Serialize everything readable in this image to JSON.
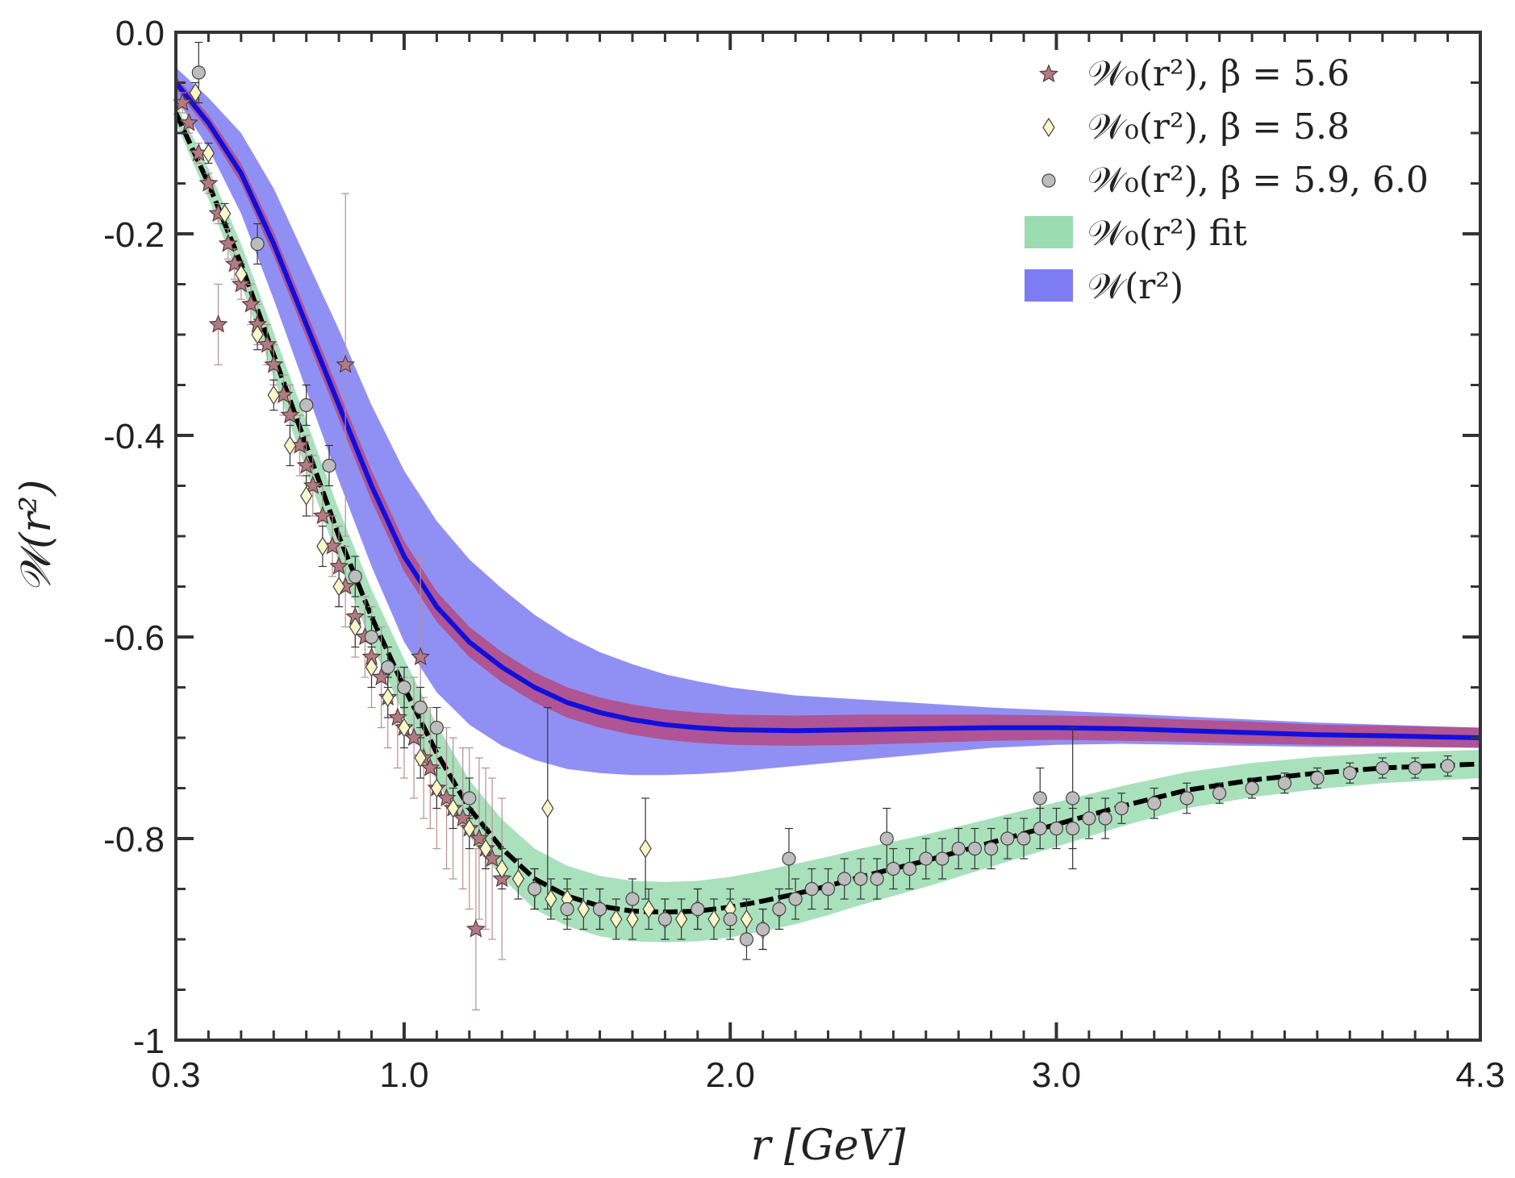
{
  "chart_data": {
    "type": "scatter",
    "title": "",
    "xlabel": "r [GeV]",
    "ylabel": "𝒲(r²)",
    "xlim": [
      0.3,
      4.3
    ],
    "ylim": [
      -1.0,
      0.0
    ],
    "x_ticks": [
      "0.3",
      "1.0",
      "2.0",
      "3.0",
      "4.3"
    ],
    "x_tick_values": [
      0.3,
      1.0,
      2.0,
      3.0,
      4.3
    ],
    "y_ticks": [
      "0.0",
      "-0.2",
      "-0.4",
      "-0.6",
      "-0.8",
      "-1"
    ],
    "y_tick_values": [
      0.0,
      -0.2,
      -0.4,
      -0.6,
      -0.8,
      -1.0
    ],
    "grid": false,
    "legend_position": "top-right",
    "colors": {
      "star": "#b07b82",
      "diamond": "#fbf7c8",
      "circle": "#bdbdbd",
      "green_band": "#9adcb0",
      "blue_band": "#7d7cf2",
      "red_band": "#b24e8a",
      "blue_line": "#1010dd",
      "black_line": "#000000"
    },
    "legend": [
      {
        "label": "𝒲₀(r²), β = 5.6",
        "marker": "star"
      },
      {
        "label": "𝒲₀(r²), β = 5.8",
        "marker": "diamond"
      },
      {
        "label": "𝒲₀(r²), β = 5.9, 6.0",
        "marker": "circle"
      },
      {
        "label": "𝒲₀(r²) fit",
        "marker": "green-band"
      },
      {
        "label": "𝒲(r²)",
        "marker": "blue-band"
      }
    ],
    "fit_curve": {
      "name": "𝒲₀(r²) fit",
      "x": [
        0.3,
        0.4,
        0.5,
        0.6,
        0.7,
        0.8,
        0.9,
        1.0,
        1.1,
        1.2,
        1.3,
        1.4,
        1.5,
        1.6,
        1.7,
        1.8,
        1.9,
        2.0,
        2.1,
        2.2,
        2.3,
        2.4,
        2.5,
        2.6,
        2.7,
        2.8,
        2.9,
        3.0,
        3.2,
        3.4,
        3.6,
        3.8,
        4.0,
        4.3
      ],
      "y": [
        -0.08,
        -0.15,
        -0.23,
        -0.32,
        -0.41,
        -0.5,
        -0.58,
        -0.65,
        -0.715,
        -0.77,
        -0.81,
        -0.84,
        -0.857,
        -0.867,
        -0.872,
        -0.873,
        -0.872,
        -0.868,
        -0.862,
        -0.855,
        -0.847,
        -0.838,
        -0.83,
        -0.822,
        -0.813,
        -0.804,
        -0.795,
        -0.786,
        -0.768,
        -0.752,
        -0.742,
        -0.735,
        -0.73,
        -0.726
      ],
      "band_half_width": [
        0.01,
        0.015,
        0.02,
        0.022,
        0.025,
        0.026,
        0.027,
        0.028,
        0.028,
        0.028,
        0.029,
        0.03,
        0.03,
        0.03,
        0.03,
        0.03,
        0.03,
        0.03,
        0.03,
        0.03,
        0.029,
        0.028,
        0.027,
        0.026,
        0.025,
        0.024,
        0.023,
        0.022,
        0.02,
        0.018,
        0.017,
        0.016,
        0.015,
        0.014
      ]
    },
    "w_curve": {
      "name": "𝒲(r²)",
      "x": [
        0.3,
        0.4,
        0.5,
        0.6,
        0.7,
        0.8,
        0.9,
        1.0,
        1.1,
        1.2,
        1.3,
        1.4,
        1.5,
        1.6,
        1.7,
        1.8,
        1.9,
        2.0,
        2.2,
        2.4,
        2.6,
        2.8,
        3.0,
        3.2,
        3.4,
        3.6,
        3.8,
        4.0,
        4.3
      ],
      "y": [
        -0.05,
        -0.09,
        -0.14,
        -0.21,
        -0.29,
        -0.37,
        -0.45,
        -0.52,
        -0.57,
        -0.605,
        -0.63,
        -0.65,
        -0.665,
        -0.675,
        -0.682,
        -0.687,
        -0.69,
        -0.692,
        -0.693,
        -0.692,
        -0.691,
        -0.69,
        -0.69,
        -0.691,
        -0.693,
        -0.695,
        -0.697,
        -0.698,
        -0.7
      ],
      "blue_band_half_width": [
        0.015,
        0.025,
        0.04,
        0.055,
        0.065,
        0.075,
        0.08,
        0.085,
        0.085,
        0.082,
        0.078,
        0.072,
        0.066,
        0.06,
        0.055,
        0.05,
        0.046,
        0.042,
        0.035,
        0.03,
        0.025,
        0.02,
        0.017,
        0.015,
        0.014,
        0.013,
        0.012,
        0.011,
        0.01
      ],
      "red_band_half_width": [
        0.006,
        0.008,
        0.01,
        0.012,
        0.013,
        0.014,
        0.015,
        0.015,
        0.015,
        0.015,
        0.015,
        0.015,
        0.015,
        0.015,
        0.015,
        0.015,
        0.015,
        0.015,
        0.015,
        0.015,
        0.014,
        0.013,
        0.012,
        0.012,
        0.011,
        0.011,
        0.01,
        0.01,
        0.01
      ]
    },
    "series": [
      {
        "name": "𝒲₀(r²), β = 5.6",
        "marker": "star",
        "x": [
          0.32,
          0.34,
          0.37,
          0.4,
          0.43,
          0.46,
          0.48,
          0.5,
          0.53,
          0.55,
          0.58,
          0.6,
          0.63,
          0.65,
          0.68,
          0.7,
          0.72,
          0.75,
          0.78,
          0.8,
          0.82,
          0.85,
          0.88,
          0.9,
          0.93,
          0.95,
          0.98,
          1.0,
          1.03,
          1.06,
          1.08,
          1.1,
          1.13,
          1.15,
          1.18,
          1.2,
          1.23,
          1.25,
          1.27,
          1.3,
          0.43,
          0.82,
          1.05,
          1.22
        ],
        "y": [
          -0.07,
          -0.09,
          -0.12,
          -0.15,
          -0.18,
          -0.21,
          -0.23,
          -0.25,
          -0.27,
          -0.29,
          -0.31,
          -0.33,
          -0.36,
          -0.38,
          -0.41,
          -0.43,
          -0.45,
          -0.48,
          -0.51,
          -0.53,
          -0.55,
          -0.58,
          -0.6,
          -0.62,
          -0.64,
          -0.66,
          -0.68,
          -0.69,
          -0.7,
          -0.72,
          -0.73,
          -0.75,
          -0.76,
          -0.77,
          -0.78,
          -0.79,
          -0.8,
          -0.81,
          -0.82,
          -0.84,
          -0.29,
          -0.33,
          -0.62,
          -0.89
        ],
        "err": [
          0.01,
          0.01,
          0.01,
          0.01,
          0.01,
          0.015,
          0.015,
          0.015,
          0.02,
          0.02,
          0.02,
          0.02,
          0.02,
          0.03,
          0.03,
          0.03,
          0.03,
          0.03,
          0.03,
          0.04,
          0.04,
          0.04,
          0.04,
          0.05,
          0.05,
          0.05,
          0.05,
          0.05,
          0.06,
          0.06,
          0.06,
          0.06,
          0.07,
          0.07,
          0.07,
          0.08,
          0.08,
          0.08,
          0.08,
          0.08,
          0.04,
          0.17,
          0.1,
          0.08
        ]
      },
      {
        "name": "𝒲₀(r²), β = 5.8",
        "marker": "diamond",
        "x": [
          0.36,
          0.4,
          0.45,
          0.5,
          0.55,
          0.6,
          0.65,
          0.7,
          0.75,
          0.8,
          0.85,
          0.9,
          0.95,
          1.0,
          1.05,
          1.1,
          1.15,
          1.2,
          1.25,
          1.3,
          1.35,
          1.4,
          1.45,
          1.5,
          1.55,
          1.6,
          1.65,
          1.7,
          1.75,
          1.8,
          1.85,
          1.9,
          1.95,
          2.0,
          2.05,
          2.1,
          2.15,
          1.44,
          1.74
        ],
        "y": [
          -0.06,
          -0.12,
          -0.18,
          -0.24,
          -0.3,
          -0.36,
          -0.41,
          -0.46,
          -0.51,
          -0.55,
          -0.59,
          -0.63,
          -0.66,
          -0.69,
          -0.72,
          -0.75,
          -0.77,
          -0.79,
          -0.81,
          -0.83,
          -0.84,
          -0.85,
          -0.86,
          -0.86,
          -0.87,
          -0.87,
          -0.88,
          -0.88,
          -0.87,
          -0.88,
          -0.88,
          -0.87,
          -0.88,
          -0.87,
          -0.88,
          -0.89,
          -0.87,
          -0.77,
          -0.81
        ],
        "err": [
          0.01,
          0.01,
          0.01,
          0.01,
          0.015,
          0.015,
          0.02,
          0.02,
          0.02,
          0.02,
          0.02,
          0.02,
          0.02,
          0.02,
          0.02,
          0.02,
          0.02,
          0.02,
          0.02,
          0.02,
          0.02,
          0.02,
          0.02,
          0.02,
          0.02,
          0.02,
          0.02,
          0.02,
          0.02,
          0.02,
          0.02,
          0.02,
          0.02,
          0.02,
          0.02,
          0.02,
          0.02,
          0.1,
          0.05
        ]
      },
      {
        "name": "𝒲₀(r²), β = 5.9, 6.0",
        "marker": "circle",
        "x": [
          0.37,
          0.55,
          0.7,
          0.77,
          0.85,
          0.9,
          0.95,
          1.0,
          1.05,
          1.1,
          1.2,
          1.4,
          1.5,
          1.6,
          1.7,
          1.8,
          1.9,
          2.0,
          2.05,
          2.1,
          2.15,
          2.2,
          2.25,
          2.3,
          2.35,
          2.4,
          2.45,
          2.5,
          2.55,
          2.6,
          2.65,
          2.7,
          2.75,
          2.8,
          2.85,
          2.9,
          2.95,
          3.0,
          3.05,
          3.1,
          3.15,
          3.2,
          3.3,
          3.4,
          3.5,
          3.6,
          3.7,
          3.8,
          3.9,
          4.0,
          4.1,
          4.2,
          2.18,
          2.48,
          2.95,
          3.05
        ],
        "y": [
          -0.04,
          -0.21,
          -0.37,
          -0.43,
          -0.54,
          -0.6,
          -0.63,
          -0.65,
          -0.67,
          -0.69,
          -0.76,
          -0.85,
          -0.87,
          -0.87,
          -0.86,
          -0.88,
          -0.87,
          -0.88,
          -0.9,
          -0.89,
          -0.87,
          -0.86,
          -0.85,
          -0.85,
          -0.84,
          -0.84,
          -0.84,
          -0.83,
          -0.83,
          -0.82,
          -0.82,
          -0.81,
          -0.81,
          -0.81,
          -0.8,
          -0.8,
          -0.79,
          -0.79,
          -0.79,
          -0.78,
          -0.78,
          -0.77,
          -0.765,
          -0.76,
          -0.755,
          -0.75,
          -0.745,
          -0.74,
          -0.735,
          -0.73,
          -0.73,
          -0.728,
          -0.82,
          -0.8,
          -0.76,
          -0.76
        ],
        "err": [
          0.03,
          0.02,
          0.02,
          0.02,
          0.02,
          0.02,
          0.02,
          0.02,
          0.02,
          0.02,
          0.02,
          0.02,
          0.02,
          0.02,
          0.02,
          0.02,
          0.02,
          0.02,
          0.02,
          0.02,
          0.02,
          0.02,
          0.02,
          0.02,
          0.02,
          0.02,
          0.02,
          0.02,
          0.02,
          0.02,
          0.02,
          0.02,
          0.02,
          0.02,
          0.02,
          0.02,
          0.02,
          0.02,
          0.02,
          0.02,
          0.02,
          0.015,
          0.015,
          0.015,
          0.01,
          0.01,
          0.01,
          0.01,
          0.01,
          0.01,
          0.01,
          0.01,
          0.03,
          0.03,
          0.03,
          0.07
        ]
      }
    ]
  }
}
